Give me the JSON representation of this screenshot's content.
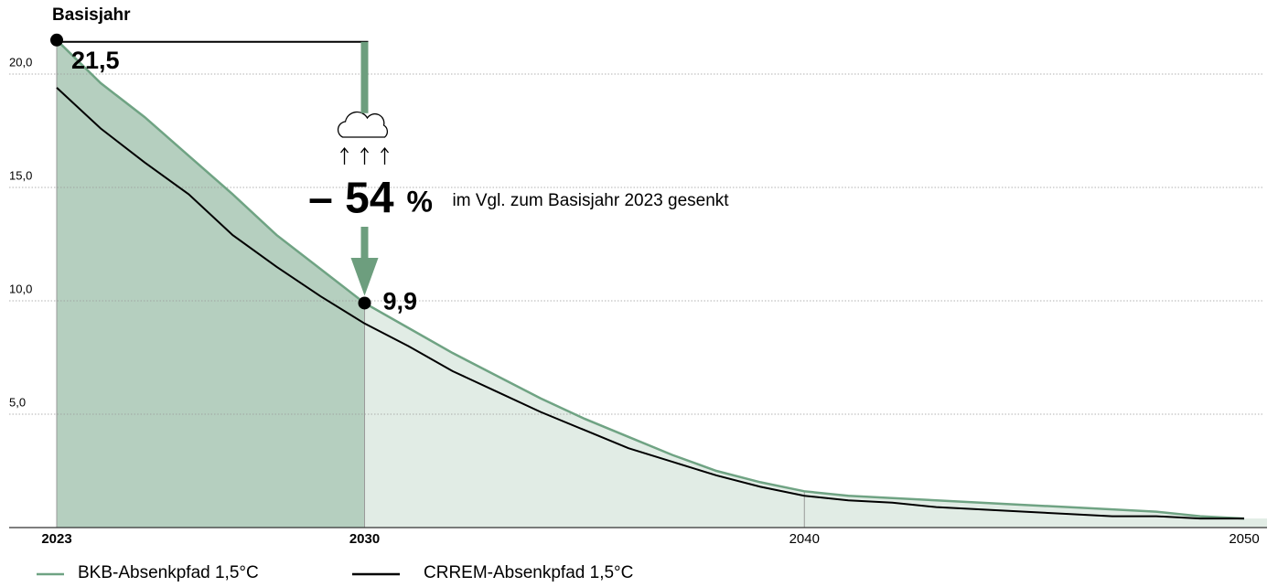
{
  "chart_data": {
    "type": "area",
    "x": [
      2023,
      2024,
      2025,
      2026,
      2027,
      2028,
      2029,
      2030,
      2031,
      2032,
      2033,
      2034,
      2035,
      2036,
      2037,
      2038,
      2039,
      2040,
      2041,
      2042,
      2043,
      2044,
      2045,
      2046,
      2047,
      2048,
      2049,
      2050
    ],
    "series": [
      {
        "name": "BKB-Absenkpfad 1,5°C",
        "color": "#6fa383",
        "values": [
          21.5,
          19.6,
          18.1,
          16.4,
          14.7,
          12.9,
          11.4,
          9.9,
          8.8,
          7.7,
          6.7,
          5.7,
          4.8,
          4.0,
          3.2,
          2.5,
          2.0,
          1.6,
          1.4,
          1.3,
          1.2,
          1.1,
          1.0,
          0.9,
          0.8,
          0.7,
          0.5,
          0.4
        ],
        "value_labels": [
          "21,5",
          null,
          null,
          null,
          null,
          null,
          null,
          "9,9",
          null,
          null,
          null,
          null,
          null,
          null,
          null,
          null,
          null,
          null,
          null,
          null,
          null,
          null,
          null,
          null,
          null,
          null,
          null,
          null
        ]
      },
      {
        "name": "CRREM-Absenkpfad 1,5°C",
        "color": "#000000",
        "values": [
          19.4,
          17.6,
          16.1,
          14.7,
          12.9,
          11.5,
          10.2,
          9.0,
          8.0,
          6.9,
          6.0,
          5.1,
          4.3,
          3.5,
          2.9,
          2.3,
          1.8,
          1.4,
          1.2,
          1.1,
          0.9,
          0.8,
          0.7,
          0.6,
          0.5,
          0.5,
          0.4,
          0.4
        ]
      }
    ],
    "area_colors": [
      "#b5cfbf",
      "#e1ece5"
    ],
    "base_label": "Basisjahr",
    "annotation": {
      "label": "– 54",
      "unit": "%",
      "text": "im Vgl. zum Basisjahr 2023 gesenkt"
    },
    "xlim": [
      2023,
      2050
    ],
    "xticks": [
      2023,
      2030,
      2040,
      2050
    ],
    "xticks_bold": [
      true,
      true,
      false,
      false
    ],
    "ylim": [
      0,
      22
    ],
    "yticks": [
      {
        "value": 5,
        "label": "5,0"
      },
      {
        "value": 10,
        "label": "10,0"
      },
      {
        "value": 15,
        "label": "15,0"
      },
      {
        "value": 20,
        "label": "20,0"
      }
    ],
    "grid": true
  }
}
